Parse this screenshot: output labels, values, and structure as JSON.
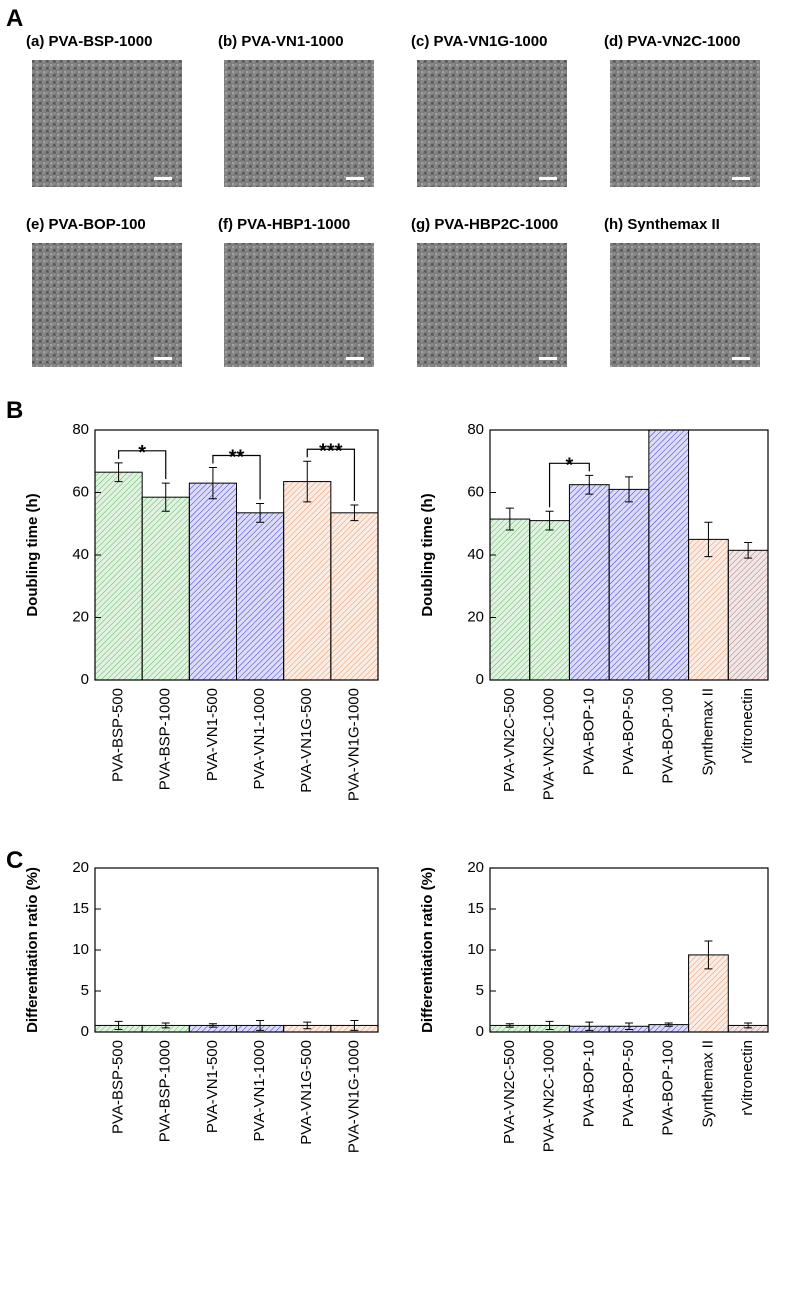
{
  "panel_letters": [
    "A",
    "B",
    "C"
  ],
  "micrographs": [
    "(a) PVA-BSP-1000",
    "(b) PVA-VN1-1000",
    "(c) PVA-VN1G-1000",
    "(d) PVA-VN2C-1000",
    "(e) PVA-BOP-100",
    "(f) PVA-HBP1-1000",
    "(g) PVA-HBP2C-1000",
    "(h) Synthemax II"
  ],
  "chart_data": [
    {
      "type": "bar",
      "y_label": "Doubling time (h)",
      "categories": [
        "PVA-BSP-500",
        "PVA-BSP-1000",
        "PVA-VN1-500",
        "PVA-VN1-1000",
        "PVA-VN1G-500",
        "PVA-VN1G-1000"
      ],
      "values": [
        66.5,
        58.5,
        63,
        53.5,
        63.5,
        53.5
      ],
      "errors": [
        3,
        4.5,
        5,
        3,
        6.5,
        2.5
      ],
      "colors": [
        "#5cb85c",
        "#5cb85c",
        "#3b3bd6",
        "#3b3bd6",
        "#e8956a",
        "#e8956a"
      ],
      "ylim": [
        0,
        80
      ],
      "yticks": [
        0,
        20,
        40,
        60,
        80
      ],
      "annotations": [
        {
          "text": "*",
          "between": [
            "PVA-BSP-500",
            "PVA-BSP-1000"
          ]
        },
        {
          "text": "**",
          "between": [
            "PVA-VN1-500",
            "PVA-VN1-1000"
          ]
        },
        {
          "text": "***",
          "between": [
            "PVA-VN1G-500",
            "PVA-VN1G-1000"
          ]
        }
      ]
    },
    {
      "type": "bar",
      "y_label": "Doubling time (h)",
      "categories": [
        "PVA-VN2C-500",
        "PVA-VN2C-1000",
        "PVA-BOP-10",
        "PVA-BOP-50",
        "PVA-BOP-100",
        "Synthemax II",
        "rVitronectin"
      ],
      "values": [
        51.5,
        51,
        62.5,
        61,
        80,
        45,
        41.5
      ],
      "errors": [
        3.5,
        3,
        3,
        4,
        0,
        5.5,
        2.5
      ],
      "colors": [
        "#5cb85c",
        "#5cb85c",
        "#3b3bd6",
        "#3b3bd6",
        "#3b3bd6",
        "#e8956a",
        "#b07a7a"
      ],
      "ylim": [
        0,
        80
      ],
      "yticks": [
        0,
        20,
        40,
        60,
        80
      ],
      "annotations": [
        {
          "text": "*",
          "between": [
            "PVA-VN2C-1000",
            "PVA-BOP-10"
          ]
        }
      ]
    },
    {
      "type": "bar",
      "y_label": "Differentiation ratio (%)",
      "categories": [
        "PVA-BSP-500",
        "PVA-BSP-1000",
        "PVA-VN1-500",
        "PVA-VN1-1000",
        "PVA-VN1G-500",
        "PVA-VN1G-1000"
      ],
      "values": [
        0.8,
        0.8,
        0.8,
        0.8,
        0.8,
        0.8
      ],
      "errors": [
        0.5,
        0.3,
        0.2,
        0.6,
        0.4,
        0.6
      ],
      "colors": [
        "#5cb85c",
        "#5cb85c",
        "#3b3bd6",
        "#3b3bd6",
        "#e8956a",
        "#e8956a"
      ],
      "ylim": [
        0,
        20
      ],
      "yticks": [
        0,
        5,
        10,
        15,
        20
      ]
    },
    {
      "type": "bar",
      "y_label": "Differentiation ratio (%)",
      "categories": [
        "PVA-VN2C-500",
        "PVA-VN2C-1000",
        "PVA-BOP-10",
        "PVA-BOP-50",
        "PVA-BOP-100",
        "Synthemax II",
        "rVitronectin"
      ],
      "values": [
        0.8,
        0.8,
        0.7,
        0.7,
        0.9,
        9.4,
        0.8
      ],
      "errors": [
        0.2,
        0.5,
        0.5,
        0.4,
        0.2,
        1.7,
        0.3
      ],
      "colors": [
        "#5cb85c",
        "#5cb85c",
        "#3b3bd6",
        "#3b3bd6",
        "#3b3bd6",
        "#e8956a",
        "#b07a7a"
      ],
      "ylim": [
        0,
        20
      ],
      "yticks": [
        0,
        5,
        10,
        15,
        20
      ]
    }
  ]
}
